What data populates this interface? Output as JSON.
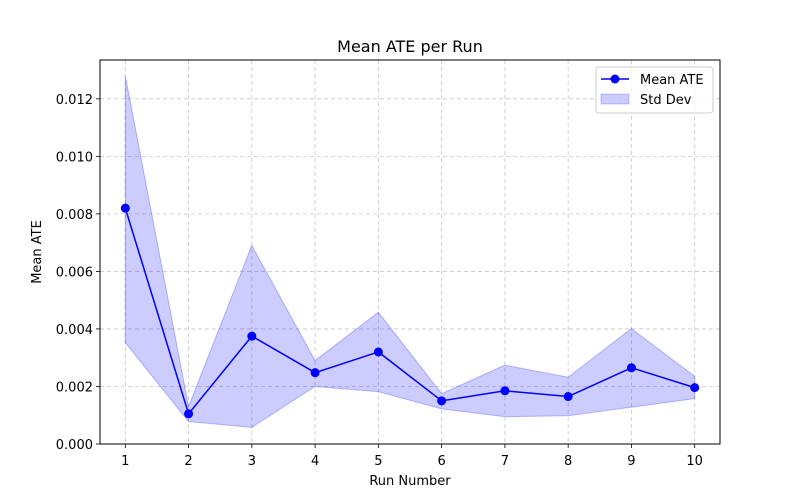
{
  "chart_data": {
    "type": "line",
    "title": "Mean ATE per Run",
    "xlabel": "Run Number",
    "ylabel": "Mean ATE",
    "x": [
      1,
      2,
      3,
      4,
      5,
      6,
      7,
      8,
      9,
      10
    ],
    "xlim": [
      0.6,
      10.4
    ],
    "ylim": [
      0,
      0.01335
    ],
    "x_ticks": [
      1,
      2,
      3,
      4,
      5,
      6,
      7,
      8,
      9,
      10
    ],
    "y_ticks": [
      0.0,
      0.002,
      0.004,
      0.006,
      0.008,
      0.01,
      0.012
    ],
    "y_tick_labels": [
      "0.000",
      "0.002",
      "0.004",
      "0.006",
      "0.008",
      "0.010",
      "0.012"
    ],
    "grid": true,
    "legend_position": "top-right",
    "series": [
      {
        "name": "Mean ATE",
        "values": [
          0.0082,
          0.00105,
          0.00375,
          0.00248,
          0.0032,
          0.0015,
          0.00185,
          0.00165,
          0.00265,
          0.00196
        ],
        "color": "#0000ff"
      }
    ],
    "band": {
      "name": "Std Dev",
      "upper": [
        0.0128,
        0.0013,
        0.0069,
        0.0029,
        0.00458,
        0.00175,
        0.00274,
        0.00232,
        0.00401,
        0.00235
      ],
      "lower": [
        0.00352,
        0.00078,
        0.00058,
        0.002,
        0.00182,
        0.00122,
        0.00095,
        0.00098,
        0.00128,
        0.00158
      ],
      "fill_color": "#0000ff",
      "fill_opacity": 0.2
    }
  }
}
